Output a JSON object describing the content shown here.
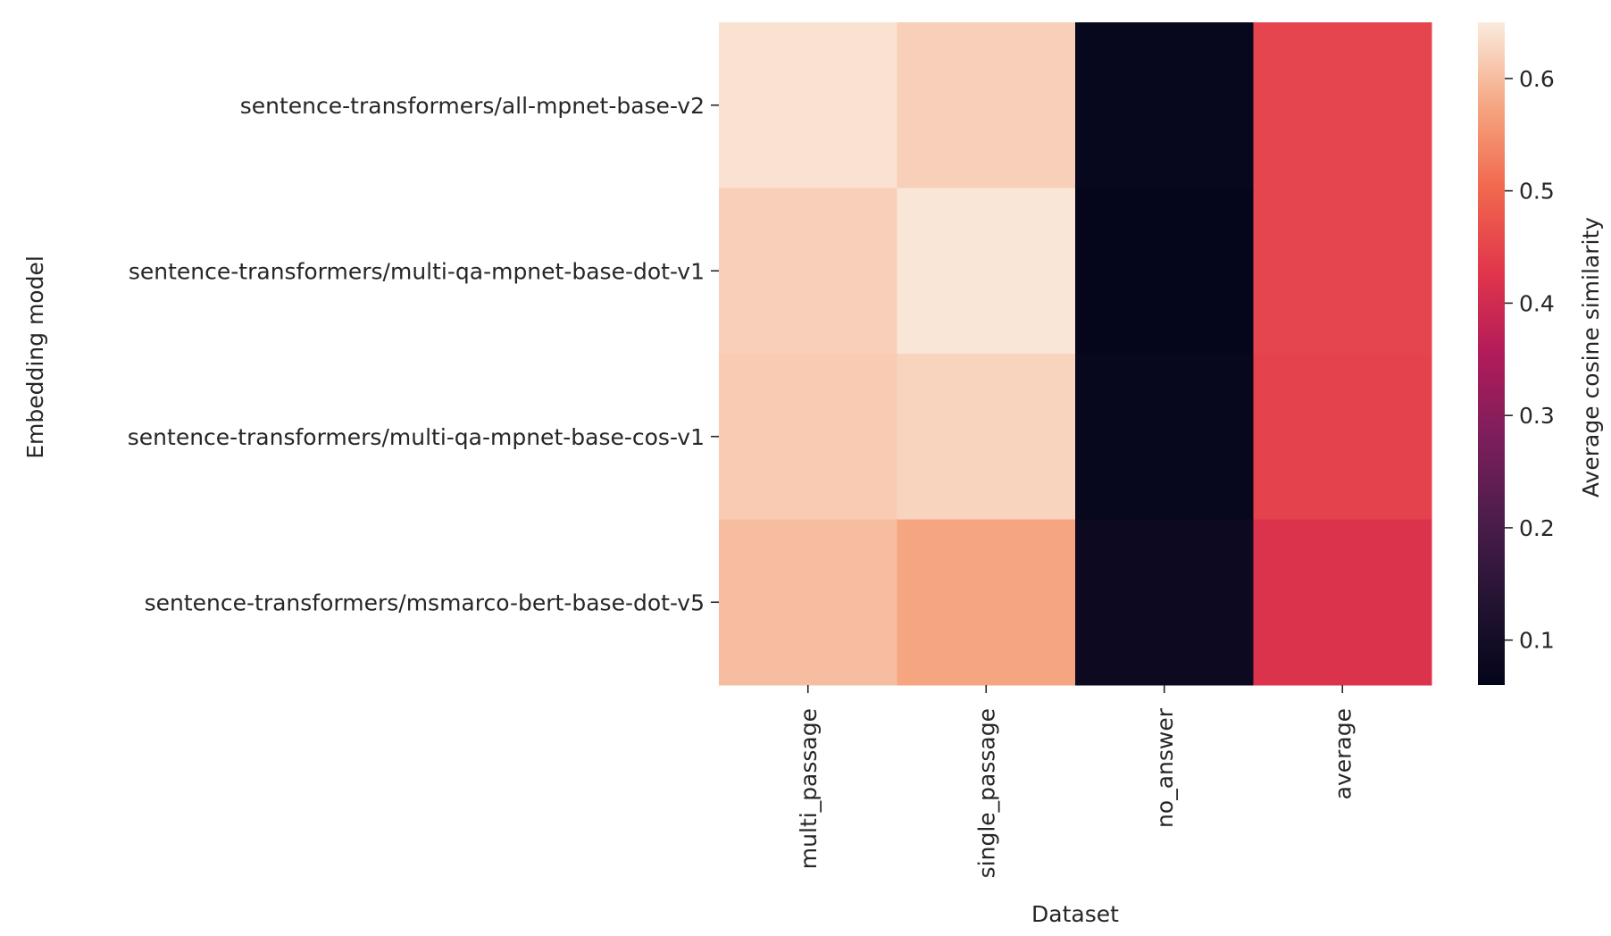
{
  "chart_data": {
    "type": "heatmap",
    "title": "",
    "xlabel": "Dataset",
    "ylabel": "Embedding model",
    "x_categories": [
      "multi_passage",
      "single_passage",
      "no_answer",
      "average"
    ],
    "y_categories": [
      "sentence-transformers/all-mpnet-base-v2",
      "sentence-transformers/multi-qa-mpnet-base-dot-v1",
      "sentence-transformers/multi-qa-mpnet-base-cos-v1",
      "sentence-transformers/msmarco-bert-base-dot-v5"
    ],
    "values": [
      [
        0.64,
        0.62,
        0.07,
        0.45
      ],
      [
        0.62,
        0.645,
        0.065,
        0.45
      ],
      [
        0.615,
        0.625,
        0.07,
        0.445
      ],
      [
        0.6,
        0.575,
        0.08,
        0.42
      ]
    ],
    "colorscale": "rocket",
    "colorbar": {
      "label": "Average cosine similarity",
      "range": [
        0.06,
        0.65
      ],
      "ticks": [
        0.1,
        0.2,
        0.3,
        0.4,
        0.5,
        0.6
      ],
      "tick_labels": [
        "0.1",
        "0.2",
        "0.3",
        "0.4",
        "0.5",
        "0.6"
      ]
    }
  }
}
